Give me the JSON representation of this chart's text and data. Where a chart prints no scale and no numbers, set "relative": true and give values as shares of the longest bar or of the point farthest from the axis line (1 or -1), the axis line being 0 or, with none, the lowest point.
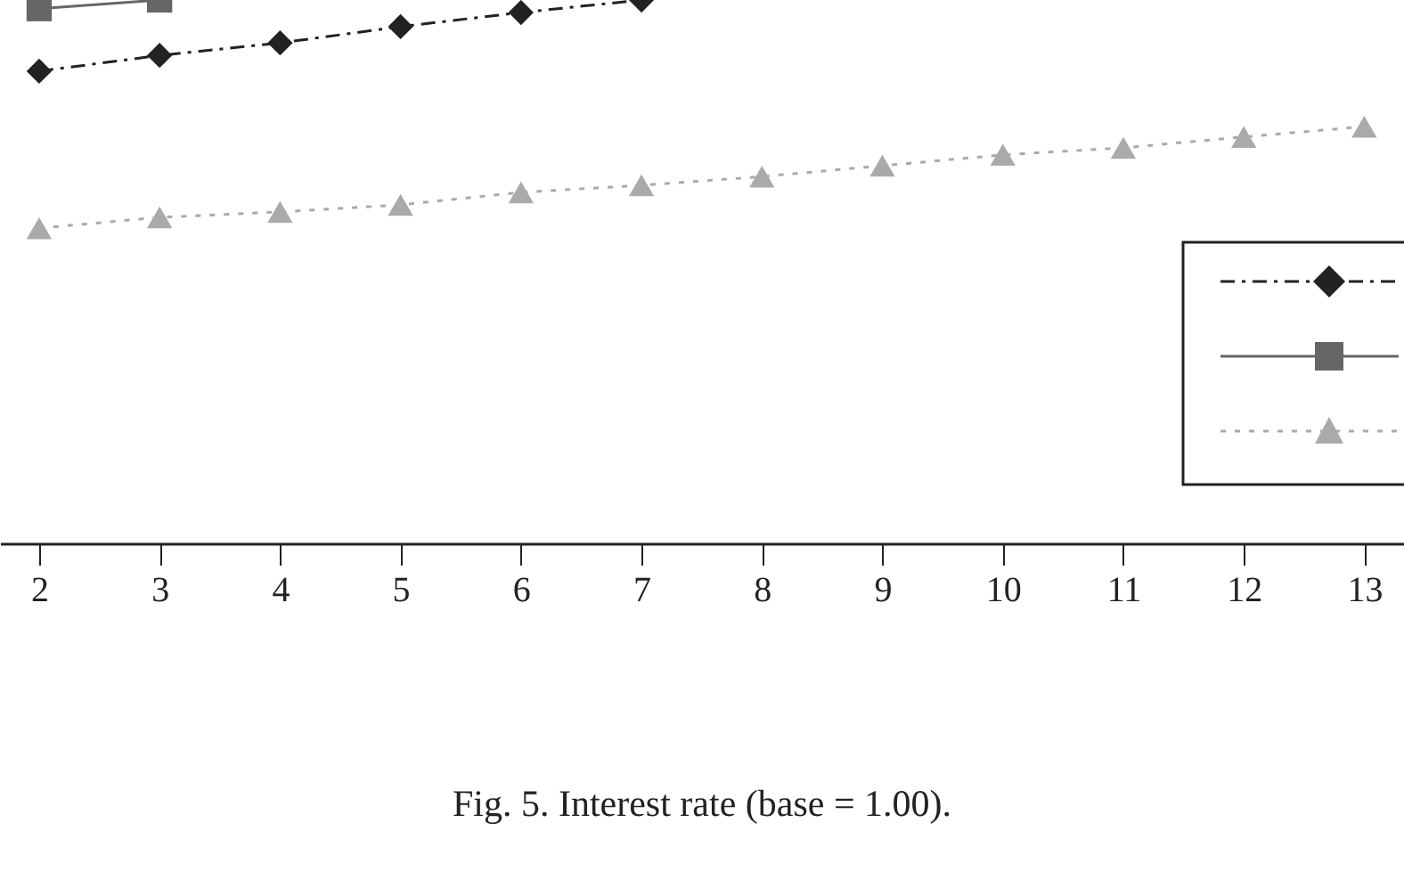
{
  "chart_data": {
    "type": "line",
    "title": "Fig. 5. Interest rate (base = 1.00).",
    "relative": true,
    "x": [
      2,
      3,
      4,
      5,
      6,
      7,
      8,
      9,
      10,
      11,
      12,
      13
    ],
    "xlim": [
      1.675,
      13.33
    ],
    "xticks": [
      2,
      3,
      4,
      5,
      6,
      7,
      8,
      9,
      10,
      11,
      12,
      13
    ],
    "grid": false,
    "tick_labels": "x",
    "series": [
      {
        "color": "#222222",
        "marker": "diamond",
        "line_style": "dashed",
        "values": [
          0.869,
          0.898,
          0.921,
          0.951,
          0.977,
          1.0,
          null,
          null,
          null,
          null,
          null,
          null
        ]
      },
      {
        "color": "#666666",
        "marker": "square",
        "line_style": "solid",
        "values": [
          0.984,
          1.0,
          null,
          null,
          null,
          null,
          null,
          null,
          null,
          null,
          null,
          null
        ]
      },
      {
        "color": "#aaaaaa",
        "marker": "triangle",
        "line_style": "dotted",
        "values": [
          0.58,
          0.6,
          0.61,
          0.623,
          0.646,
          0.659,
          0.675,
          0.695,
          0.715,
          0.728,
          0.748,
          0.767
        ]
      }
    ]
  }
}
